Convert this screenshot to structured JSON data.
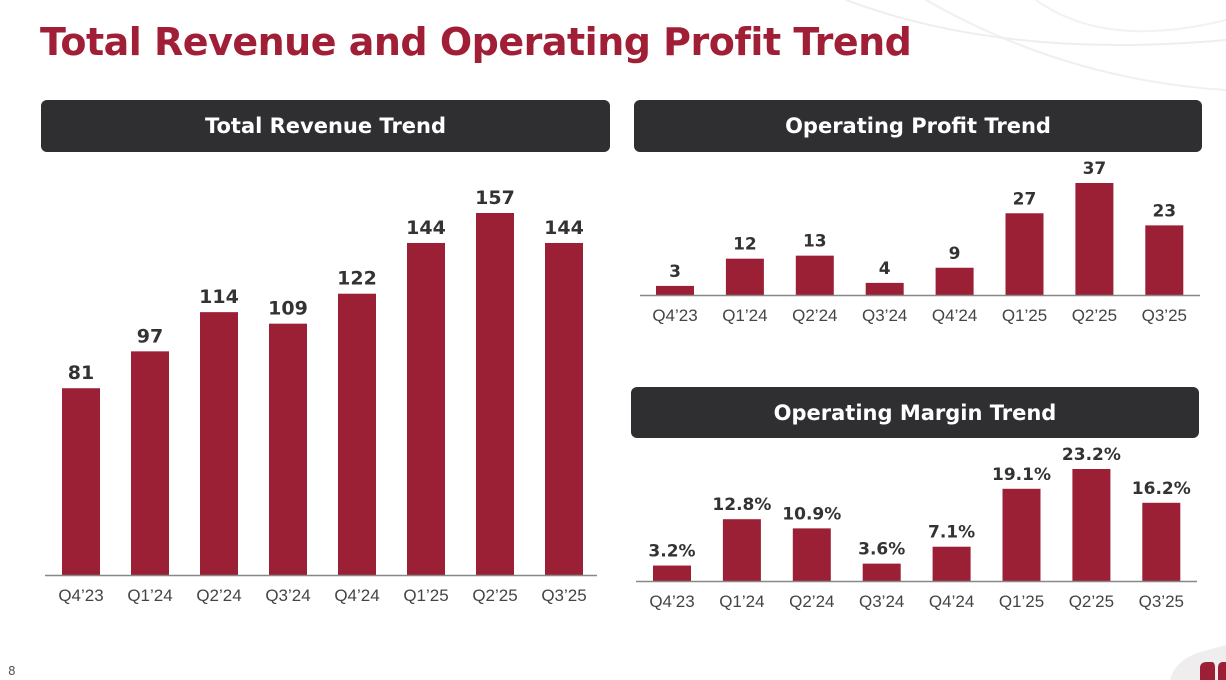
{
  "page_title": "Total Revenue and Operating Profit Trend",
  "page_number": "8",
  "colors": {
    "bar": "#9b2035",
    "title": "#a01f36",
    "header_bg": "#2f2f31"
  },
  "chart_data": [
    {
      "type": "bar",
      "title": "Total Revenue Trend",
      "categories": [
        "Q4’23",
        "Q1’24",
        "Q2’24",
        "Q3’24",
        "Q4’24",
        "Q1’25",
        "Q2’25",
        "Q3’25"
      ],
      "values": [
        81,
        97,
        114,
        109,
        122,
        144,
        157,
        144
      ],
      "labels": [
        "81",
        "97",
        "114",
        "109",
        "122",
        "144",
        "157",
        "144"
      ],
      "xlabel": "",
      "ylabel": "",
      "ylim": [
        0,
        157
      ],
      "grid": false
    },
    {
      "type": "bar",
      "title": "Operating Profit Trend",
      "categories": [
        "Q4’23",
        "Q1’24",
        "Q2’24",
        "Q3’24",
        "Q4’24",
        "Q1’25",
        "Q2’25",
        "Q3’25"
      ],
      "values": [
        3,
        12,
        13,
        4,
        9,
        27,
        37,
        23
      ],
      "labels": [
        "3",
        "12",
        "13",
        "4",
        "9",
        "27",
        "37",
        "23"
      ],
      "xlabel": "",
      "ylabel": "",
      "ylim": [
        0,
        37
      ],
      "grid": false
    },
    {
      "type": "bar",
      "title": "Operating Margin Trend",
      "categories": [
        "Q4’23",
        "Q1’24",
        "Q2’24",
        "Q3’24",
        "Q4’24",
        "Q1’25",
        "Q2’25",
        "Q3’25"
      ],
      "values": [
        3.2,
        12.8,
        10.9,
        3.6,
        7.1,
        19.1,
        23.2,
        16.2
      ],
      "labels": [
        "3.2%",
        "12.8%",
        "10.9%",
        "3.6%",
        "7.1%",
        "19.1%",
        "23.2%",
        "16.2%"
      ],
      "xlabel": "",
      "ylabel": "",
      "ylim": [
        0,
        23.2
      ],
      "grid": false
    }
  ]
}
